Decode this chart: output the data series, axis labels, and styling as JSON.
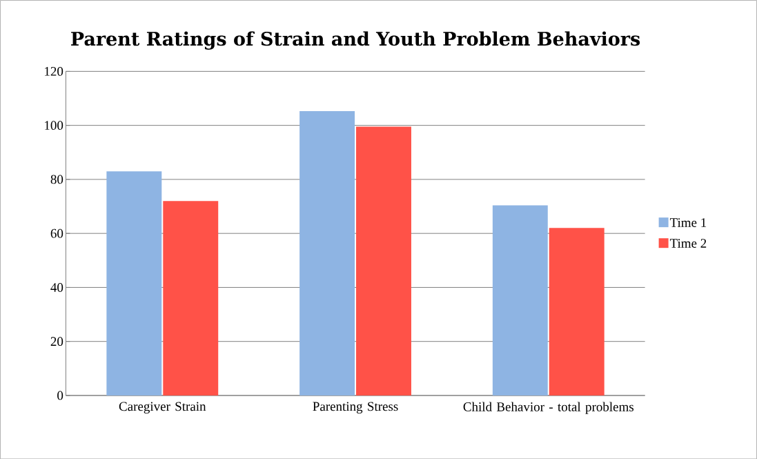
{
  "chart_data": {
    "type": "bar",
    "title": "Parent Ratings of Strain and Youth Problem Behaviors",
    "categories": [
      "Caregiver Strain",
      "Parenting Stress",
      "Child Behavior - total problems"
    ],
    "series": [
      {
        "name": "Time 1",
        "color": "#8eb4e3",
        "values": [
          83,
          105.3,
          70.4
        ]
      },
      {
        "name": "Time 2",
        "color": "#ff5248",
        "values": [
          72,
          99.5,
          62
        ]
      }
    ],
    "ylim": [
      0,
      120
    ],
    "yticks": [
      0,
      20,
      40,
      60,
      80,
      100,
      120
    ],
    "grid": "y",
    "legend": "right"
  }
}
